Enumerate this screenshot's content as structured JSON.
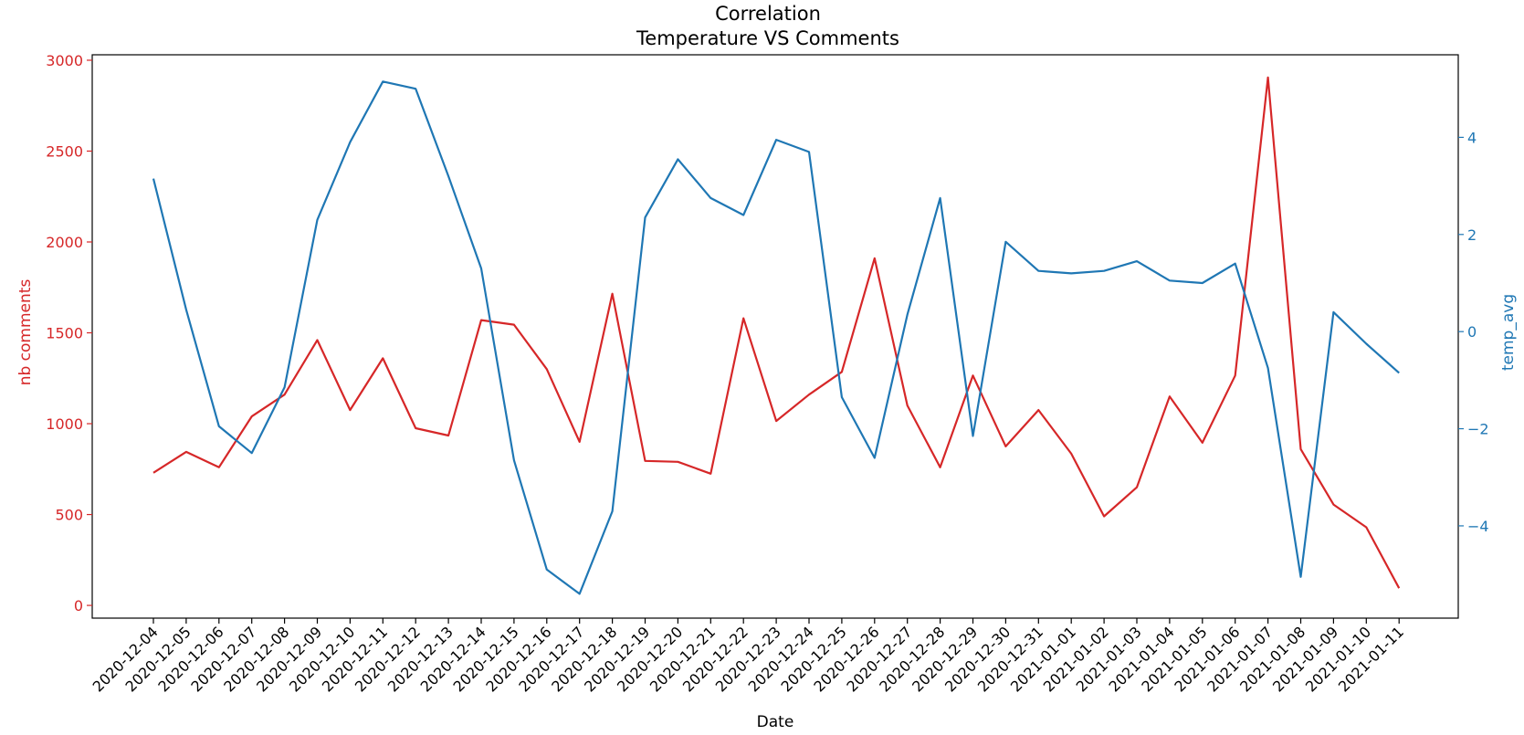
{
  "chart_data": {
    "type": "line",
    "title": "Correlation",
    "subtitle": "Temperature VS Comments",
    "xlabel": "Date",
    "ylabel_left": "nb comments",
    "ylabel_right": "temp_avg",
    "grid": false,
    "x": [
      "2020-12-04",
      "2020-12-05",
      "2020-12-06",
      "2020-12-07",
      "2020-12-08",
      "2020-12-09",
      "2020-12-10",
      "2020-12-11",
      "2020-12-12",
      "2020-12-13",
      "2020-12-14",
      "2020-12-15",
      "2020-12-16",
      "2020-12-17",
      "2020-12-18",
      "2020-12-19",
      "2020-12-20",
      "2020-12-21",
      "2020-12-22",
      "2020-12-23",
      "2020-12-24",
      "2020-12-25",
      "2020-12-26",
      "2020-12-27",
      "2020-12-28",
      "2020-12-29",
      "2020-12-30",
      "2020-12-31",
      "2021-01-01",
      "2021-01-02",
      "2021-01-03",
      "2021-01-04",
      "2021-01-05",
      "2021-01-06",
      "2021-01-07",
      "2021-01-08",
      "2021-01-09",
      "2021-01-10",
      "2021-01-11"
    ],
    "ylim_left": [
      -70,
      3030
    ],
    "ylim_right": [
      -5.9,
      5.7
    ],
    "yticks_left": [
      0,
      500,
      1000,
      1500,
      2000,
      2500,
      3000
    ],
    "yticks_right": [
      -4,
      -2,
      0,
      2,
      4
    ],
    "yticklabels_right": [
      "−4",
      "−2",
      "0",
      "2",
      "4"
    ],
    "series": [
      {
        "axis": "left",
        "color": "#d62728",
        "values": [
          730,
          845,
          760,
          1040,
          1160,
          1460,
          1075,
          1360,
          975,
          935,
          1570,
          1545,
          1300,
          900,
          1715,
          795,
          790,
          725,
          1580,
          1015,
          1160,
          1285,
          1910,
          1100,
          760,
          1265,
          875,
          1075,
          835,
          490,
          650,
          1150,
          895,
          1265,
          2905,
          860,
          555,
          430,
          95
        ]
      },
      {
        "axis": "right",
        "color": "#1f77b4",
        "values": [
          3.15,
          0.45,
          -1.95,
          -2.5,
          -1.15,
          2.3,
          3.9,
          5.15,
          5.0,
          3.2,
          1.3,
          -2.65,
          -4.9,
          -5.4,
          -3.7,
          2.35,
          3.55,
          2.75,
          2.4,
          3.95,
          3.7,
          -1.35,
          -2.6,
          0.35,
          2.75,
          -2.15,
          1.85,
          1.25,
          1.2,
          1.25,
          1.45,
          1.05,
          1.0,
          1.4,
          -0.75,
          -5.05,
          0.4,
          -0.25,
          -0.85
        ]
      }
    ]
  }
}
